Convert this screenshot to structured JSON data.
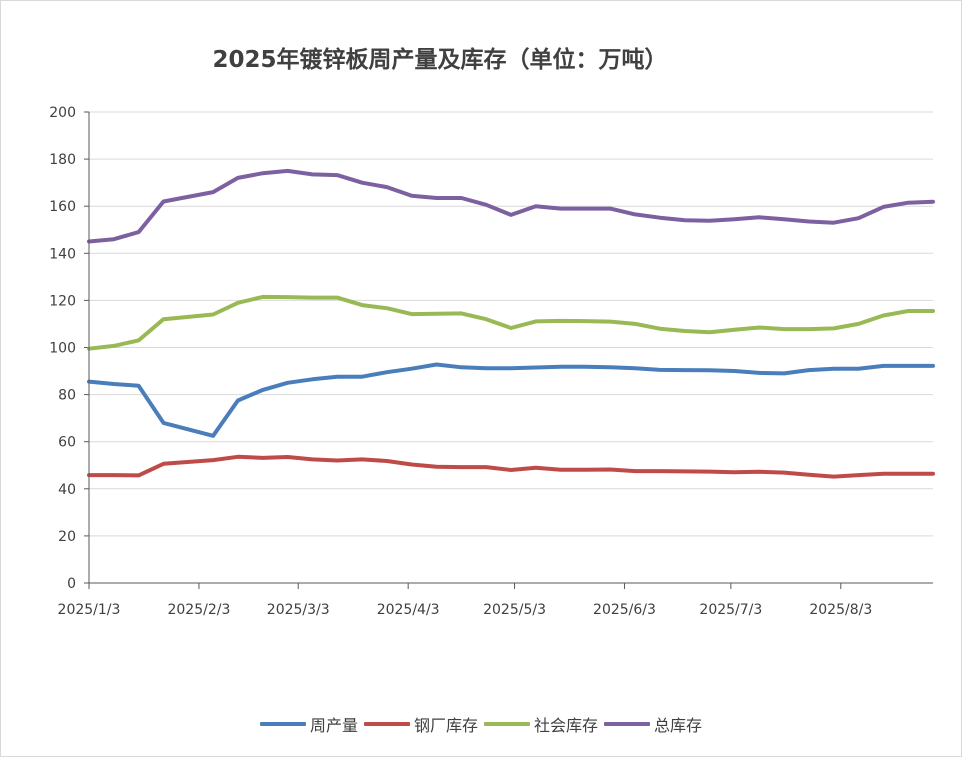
{
  "chart_data": {
    "type": "line",
    "title": "2025年镀锌板周产量及库存（单位：万吨）",
    "xlabel": "",
    "ylabel": "",
    "ylim": [
      0,
      200
    ],
    "y_ticks": [
      "0",
      "20",
      "40",
      "60",
      "80",
      "100",
      "120",
      "140",
      "160",
      "180",
      "200"
    ],
    "x_ticks": [
      "2025/1/3",
      "2025/2/3",
      "2025/3/3",
      "2025/4/3",
      "2025/5/3",
      "2025/6/3",
      "2025/7/3",
      "2025/8/3"
    ],
    "x_tick_dates": [
      "2025-01-03",
      "2025-02-03",
      "2025-03-03",
      "2025-04-03",
      "2025-05-03",
      "2025-06-03",
      "2025-07-03",
      "2025-08-03"
    ],
    "x_range": [
      "2025-01-03",
      "2025-08-29"
    ],
    "grid": true,
    "legend_position": "bottom",
    "x": [
      "2025-01-03",
      "2025-01-10",
      "2025-01-17",
      "2025-01-24",
      "2025-02-07",
      "2025-02-14",
      "2025-02-21",
      "2025-02-28",
      "2025-03-07",
      "2025-03-14",
      "2025-03-21",
      "2025-03-28",
      "2025-04-04",
      "2025-04-11",
      "2025-04-18",
      "2025-04-25",
      "2025-05-02",
      "2025-05-09",
      "2025-05-16",
      "2025-05-23",
      "2025-05-30",
      "2025-06-06",
      "2025-06-13",
      "2025-06-20",
      "2025-06-27",
      "2025-07-04",
      "2025-07-11",
      "2025-07-18",
      "2025-07-25",
      "2025-08-01",
      "2025-08-08",
      "2025-08-15",
      "2025-08-22",
      "2025-08-29"
    ],
    "series": [
      {
        "name": "周产量",
        "color": "#4a7ebb",
        "values": [
          85.5,
          84.5,
          83.8,
          68,
          62.5,
          77.5,
          82,
          85,
          86.5,
          87.6,
          87.6,
          89.5,
          91,
          92.8,
          91.6,
          91.2,
          91.2,
          91.5,
          91.8,
          91.8,
          91.6,
          91.2,
          90.5,
          90.4,
          90.3,
          90,
          89.2,
          89,
          90.4,
          91,
          91,
          92.2,
          92.2,
          92.2
        ]
      },
      {
        "name": "钢厂库存",
        "color": "#be4b48",
        "values": [
          45.8,
          45.8,
          45.7,
          50.6,
          52.2,
          53.6,
          53.1,
          53.5,
          52.5,
          52,
          52.5,
          51.8,
          50.3,
          49.4,
          49.2,
          49.2,
          48,
          48.9,
          48.1,
          48.1,
          48.2,
          47.5,
          47.5,
          47.4,
          47.3,
          47,
          47.2,
          46.9,
          46,
          45.2,
          45.8,
          46.4,
          46.4,
          46.4
        ]
      },
      {
        "name": "社会库存",
        "color": "#98b954",
        "values": [
          99.5,
          100.7,
          103,
          112,
          114,
          119,
          121.5,
          121.4,
          121.2,
          121.2,
          118,
          116.7,
          114.2,
          114.3,
          114.5,
          112,
          108.3,
          111.1,
          111.3,
          111.2,
          111,
          110,
          108,
          107,
          106.5,
          107.5,
          108.5,
          107.8,
          107.8,
          108.1,
          110,
          113.6,
          115.5,
          115.5
        ]
      },
      {
        "name": "总库存",
        "color": "#7d60a0",
        "values": [
          145,
          146,
          149,
          162,
          166,
          172,
          174,
          175,
          173.5,
          173.2,
          170,
          168.1,
          164.4,
          163.5,
          163.5,
          160.6,
          156.3,
          160,
          159,
          159,
          159,
          156.5,
          155.1,
          154,
          153.8,
          154.5,
          155.3,
          154.5,
          153.5,
          153,
          154.9,
          159.7,
          161.5,
          161.9
        ]
      }
    ]
  }
}
